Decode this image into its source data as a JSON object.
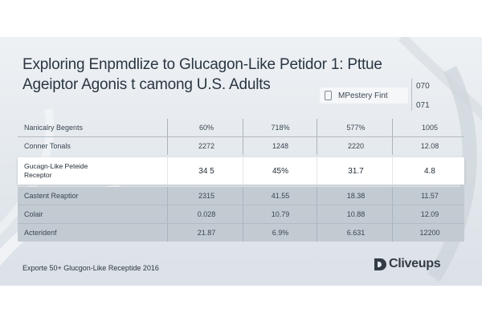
{
  "title_line1": "Exploring Enpmdlize to Glucagon-Like Petidor 1: Pttue",
  "title_line2": "Ageiptor Agonis t camong U.S. Adults",
  "badge": {
    "label": "MPestery Fint",
    "icon": "document-icon"
  },
  "side_numbers": [
    "070",
    "071"
  ],
  "table": {
    "rows": [
      {
        "label": "Nanicalry Begents",
        "values": [
          "60%",
          "718%",
          "577%",
          "1005"
        ]
      },
      {
        "label": "Conner Tonals",
        "values": [
          "2272",
          "1248",
          "2220",
          "12.08"
        ]
      },
      {
        "label": "Gucagn-Like Peteide Receptor",
        "values": [
          "34 5",
          "45%",
          "31.7",
          "4.8"
        ]
      },
      {
        "label": "Castent Reaptior",
        "values": [
          "2315",
          "41.55",
          "18.38",
          "11.57"
        ]
      },
      {
        "label": "Colair",
        "values": [
          "0.028",
          "10.79",
          "10.88",
          "12.09"
        ]
      },
      {
        "label": "Acteridenf",
        "values": [
          "21.87",
          "6.9%",
          "6.631",
          "12200"
        ]
      }
    ]
  },
  "footer": "Exporte 50+ Glucgon-Like Receptide 2016",
  "logo": {
    "text": "Cliveups",
    "mark": "D"
  },
  "colors": {
    "background": "#e3e8ed",
    "shade_row": "#c3cbd2",
    "highlight_row": "#ffffff",
    "text": "#2a3642"
  }
}
